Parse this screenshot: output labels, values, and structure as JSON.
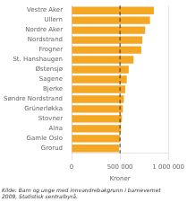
{
  "chart_data": {
    "type": "bar",
    "orientation": "horizontal",
    "categories": [
      "Grorud",
      "Gamle Oslo",
      "Alna",
      "Stovner",
      "Grünerløkka",
      "Søndre Nordstrand",
      "Bjerke",
      "Sagene",
      "Østensjø",
      "St. Hanshaugen",
      "Frogner",
      "Nordstrand",
      "Nordre Aker",
      "Ullern",
      "Vestre Aker"
    ],
    "values": [
      490000,
      500000,
      510000,
      520000,
      530000,
      540000,
      555000,
      570000,
      590000,
      640000,
      720000,
      730000,
      760000,
      810000,
      850000
    ],
    "color": "#F5A623",
    "xlim": [
      0,
      1000000
    ],
    "xticks": [
      0,
      {
        "value": 500000,
        "label": "500 000"
      },
      {
        "value": 1000000,
        "label": "1 000 000"
      }
    ],
    "xlabel": "Kroner",
    "grid": true,
    "vlines": [
      {
        "x": 500000,
        "line_style": "dashed"
      }
    ],
    "source": "Kilde: Barn og unge med innvandrebakgrunn i barnevernet\n2009, Statistisk sentralbyrå."
  }
}
